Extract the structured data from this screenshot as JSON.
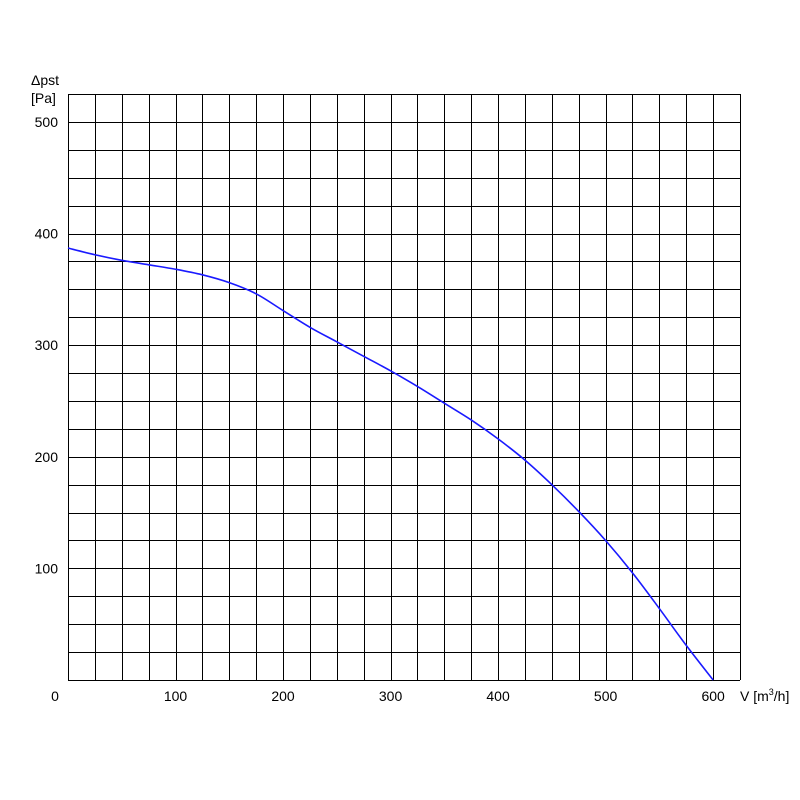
{
  "chart_data": {
    "type": "line",
    "title": "",
    "ylabel_line1": "Δpst",
    "ylabel_line2": "[Pa]",
    "xlabel_prefix": "V [m",
    "xlabel_sup": "3",
    "xlabel_suffix": "/h]",
    "xlim": [
      0,
      625
    ],
    "ylim": [
      0,
      525
    ],
    "x_minor_step": 25,
    "y_minor_step": 25,
    "grid": true,
    "x_ticks": [
      {
        "value": 0,
        "label": "0"
      },
      {
        "value": 100,
        "label": "100"
      },
      {
        "value": 200,
        "label": "200"
      },
      {
        "value": 300,
        "label": "300"
      },
      {
        "value": 400,
        "label": "400"
      },
      {
        "value": 500,
        "label": "500"
      },
      {
        "value": 600,
        "label": "600"
      }
    ],
    "y_ticks": [
      {
        "value": 100,
        "label": "100"
      },
      {
        "value": 200,
        "label": "200"
      },
      {
        "value": 300,
        "label": "300"
      },
      {
        "value": 400,
        "label": "400"
      },
      {
        "value": 500,
        "label": "500"
      }
    ],
    "series": [
      {
        "color": "#1a1aff",
        "x": [
          0,
          25,
          50,
          75,
          100,
          125,
          150,
          175,
          200,
          225,
          250,
          275,
          300,
          325,
          350,
          375,
          400,
          425,
          450,
          475,
          500,
          525,
          550,
          575,
          600
        ],
        "y": [
          387,
          381,
          376,
          372,
          368,
          363,
          356,
          346,
          331,
          316,
          303,
          290,
          277,
          263,
          248,
          233,
          216,
          197,
          175,
          151,
          125,
          96,
          64,
          31,
          0
        ]
      }
    ]
  }
}
